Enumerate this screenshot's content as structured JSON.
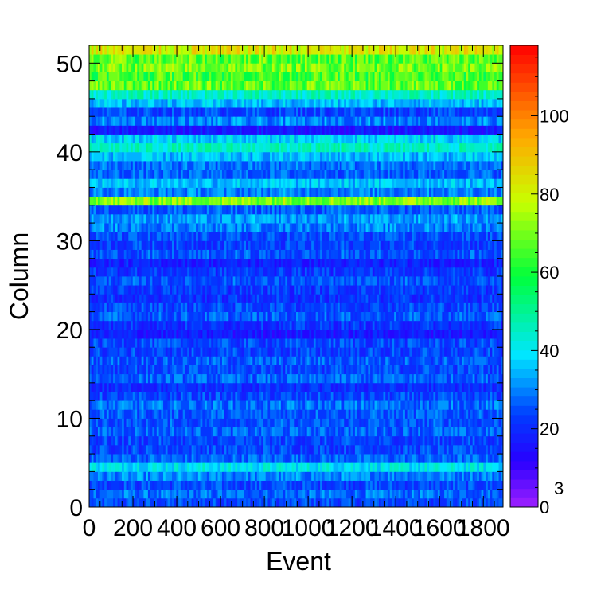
{
  "chart_data": {
    "type": "heatmap",
    "title": "",
    "xlabel": "Event",
    "ylabel": "Column",
    "xlim": [
      0,
      1890
    ],
    "ylim": [
      0,
      52
    ],
    "x_bins": 190,
    "y_bins": 52,
    "x_ticks": [
      "0",
      "200",
      "400",
      "600",
      "800",
      "1000",
      "1200",
      "1400",
      "1600",
      "1800"
    ],
    "y_ticks": [
      "0",
      "10",
      "20",
      "30",
      "40",
      "50"
    ],
    "x_tick_values": [
      0,
      200,
      400,
      600,
      800,
      1000,
      1200,
      1400,
      1600,
      1800
    ],
    "y_tick_values": [
      0,
      10,
      20,
      30,
      40,
      50
    ],
    "colorbar": {
      "range": [
        0,
        118
      ],
      "ticks": [
        "0",
        "20",
        "40",
        "60",
        "80",
        "100"
      ],
      "tick_values": [
        0,
        20,
        40,
        60,
        80,
        100
      ],
      "exponent_label": "3",
      "palette": "rainbow (violet → blue → cyan → green → yellow → red)"
    },
    "column_mean_values": [
      24,
      28,
      24,
      30,
      40,
      27,
      24,
      23,
      27,
      25,
      26,
      28,
      23,
      20,
      27,
      24,
      26,
      23,
      24,
      17,
      21,
      26,
      24,
      21,
      22,
      25,
      22,
      18,
      25,
      23,
      24,
      30,
      32,
      26,
      72,
      30,
      36,
      27,
      28,
      35,
      45,
      38,
      16,
      30,
      24,
      35,
      45,
      68,
      65,
      70,
      67,
      82
    ],
    "noise_amplitude": 6
  }
}
